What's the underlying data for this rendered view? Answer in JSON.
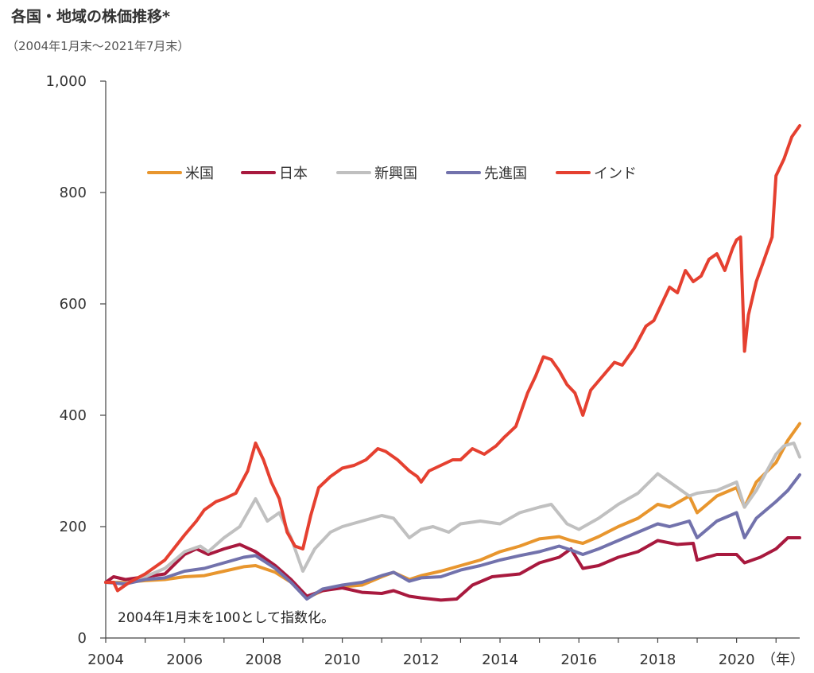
{
  "title": "各国・地域の株価推移*",
  "subtitle": "（2004年1月末～2021年7月末）",
  "chart_data": {
    "type": "line",
    "title": "各国・地域の株価推移*",
    "subtitle": "（2004年1月末～2021年7月末）",
    "xlabel": "（年）",
    "ylabel": "",
    "xlim": [
      2004.0,
      2021.6
    ],
    "ylim": [
      0,
      1000
    ],
    "x_ticks": [
      2004,
      2006,
      2008,
      2010,
      2012,
      2014,
      2016,
      2018,
      2020
    ],
    "x_tick_labels": [
      "2004",
      "2006",
      "2008",
      "2010",
      "2012",
      "2014",
      "2016",
      "2018",
      "2020"
    ],
    "y_ticks": [
      0,
      200,
      400,
      600,
      800,
      1000
    ],
    "y_tick_labels": [
      "0",
      "200",
      "400",
      "600",
      "800",
      "1,000"
    ],
    "grid": false,
    "legend_position": "top-left",
    "annotation": "2004年1月末を100として指数化。",
    "series": [
      {
        "name": "米国",
        "color": "#e8962e",
        "x": [
          2004.0,
          2004.5,
          2005.0,
          2005.5,
          2006.0,
          2006.5,
          2007.0,
          2007.5,
          2007.8,
          2008.3,
          2008.7,
          2009.1,
          2009.5,
          2010.0,
          2010.5,
          2011.0,
          2011.3,
          2011.7,
          2012.0,
          2012.5,
          2013.0,
          2013.5,
          2014.0,
          2014.5,
          2015.0,
          2015.5,
          2015.8,
          2016.1,
          2016.5,
          2017.0,
          2017.5,
          2018.0,
          2018.3,
          2018.8,
          2019.0,
          2019.5,
          2020.0,
          2020.2,
          2020.5,
          2021.0,
          2021.3,
          2021.6
        ],
        "y": [
          100,
          100,
          103,
          105,
          110,
          112,
          120,
          128,
          130,
          118,
          100,
          72,
          85,
          92,
          95,
          110,
          118,
          105,
          112,
          120,
          130,
          140,
          155,
          165,
          178,
          182,
          175,
          170,
          182,
          200,
          215,
          240,
          235,
          255,
          225,
          255,
          270,
          235,
          280,
          315,
          355,
          385
        ]
      },
      {
        "name": "日本",
        "color": "#a8193e",
        "x": [
          2004.0,
          2004.2,
          2004.5,
          2005.0,
          2005.5,
          2006.0,
          2006.3,
          2006.6,
          2007.0,
          2007.4,
          2007.8,
          2008.3,
          2008.7,
          2009.1,
          2009.5,
          2010.0,
          2010.5,
          2011.0,
          2011.3,
          2011.7,
          2012.0,
          2012.5,
          2012.9,
          2013.3,
          2013.8,
          2014.5,
          2015.0,
          2015.5,
          2015.8,
          2016.1,
          2016.5,
          2017.0,
          2017.5,
          2018.0,
          2018.5,
          2018.9,
          2019.0,
          2019.5,
          2020.0,
          2020.2,
          2020.6,
          2021.0,
          2021.3,
          2021.6
        ],
        "y": [
          100,
          110,
          105,
          110,
          115,
          150,
          160,
          150,
          160,
          168,
          155,
          130,
          105,
          75,
          85,
          90,
          82,
          80,
          85,
          75,
          72,
          68,
          70,
          95,
          110,
          115,
          135,
          145,
          160,
          125,
          130,
          145,
          155,
          175,
          168,
          170,
          140,
          150,
          150,
          135,
          145,
          160,
          180,
          180
        ]
      },
      {
        "name": "新興国",
        "color": "#c0c0c0",
        "x": [
          2004.0,
          2004.5,
          2005.0,
          2005.5,
          2006.0,
          2006.4,
          2006.6,
          2007.0,
          2007.4,
          2007.8,
          2008.1,
          2008.4,
          2008.7,
          2009.0,
          2009.3,
          2009.7,
          2010.0,
          2010.5,
          2011.0,
          2011.3,
          2011.7,
          2012.0,
          2012.3,
          2012.7,
          2013.0,
          2013.5,
          2014.0,
          2014.5,
          2015.0,
          2015.3,
          2015.7,
          2016.0,
          2016.5,
          2017.0,
          2017.5,
          2018.0,
          2018.3,
          2018.8,
          2019.0,
          2019.5,
          2020.0,
          2020.2,
          2020.5,
          2021.0,
          2021.2,
          2021.45,
          2021.6
        ],
        "y": [
          100,
          98,
          110,
          125,
          155,
          165,
          155,
          180,
          200,
          250,
          210,
          225,
          180,
          120,
          160,
          190,
          200,
          210,
          220,
          215,
          180,
          195,
          200,
          190,
          205,
          210,
          205,
          225,
          235,
          240,
          205,
          195,
          215,
          240,
          260,
          295,
          280,
          255,
          260,
          265,
          280,
          235,
          265,
          330,
          345,
          350,
          325
        ]
      },
      {
        "name": "先進国",
        "color": "#7272ac",
        "x": [
          2004.0,
          2004.5,
          2005.0,
          2005.5,
          2006.0,
          2006.5,
          2007.0,
          2007.5,
          2007.8,
          2008.3,
          2008.7,
          2009.1,
          2009.5,
          2010.0,
          2010.5,
          2011.0,
          2011.3,
          2011.7,
          2012.0,
          2012.5,
          2013.0,
          2013.5,
          2014.0,
          2014.5,
          2015.0,
          2015.5,
          2015.8,
          2016.1,
          2016.5,
          2017.0,
          2017.5,
          2018.0,
          2018.3,
          2018.8,
          2019.0,
          2019.5,
          2020.0,
          2020.2,
          2020.5,
          2021.0,
          2021.3,
          2021.6
        ],
        "y": [
          100,
          97,
          105,
          108,
          120,
          125,
          135,
          145,
          148,
          125,
          100,
          70,
          88,
          95,
          100,
          112,
          118,
          102,
          108,
          110,
          122,
          130,
          140,
          148,
          155,
          165,
          158,
          150,
          160,
          175,
          190,
          205,
          200,
          210,
          180,
          210,
          225,
          180,
          215,
          245,
          265,
          293
        ]
      },
      {
        "name": "インド",
        "color": "#e54030",
        "x": [
          2004.0,
          2004.2,
          2004.3,
          2004.6,
          2005.0,
          2005.5,
          2006.0,
          2006.3,
          2006.5,
          2006.8,
          2007.0,
          2007.3,
          2007.6,
          2007.8,
          2008.0,
          2008.2,
          2008.4,
          2008.6,
          2008.8,
          2009.0,
          2009.2,
          2009.4,
          2009.7,
          2010.0,
          2010.3,
          2010.6,
          2010.9,
          2011.1,
          2011.4,
          2011.7,
          2011.9,
          2012.0,
          2012.2,
          2012.5,
          2012.8,
          2013.0,
          2013.3,
          2013.6,
          2013.9,
          2014.1,
          2014.4,
          2014.7,
          2014.9,
          2015.1,
          2015.3,
          2015.5,
          2015.7,
          2015.9,
          2016.1,
          2016.3,
          2016.6,
          2016.9,
          2017.1,
          2017.4,
          2017.7,
          2017.9,
          2018.1,
          2018.3,
          2018.5,
          2018.7,
          2018.9,
          2019.1,
          2019.3,
          2019.5,
          2019.7,
          2019.9,
          2020.0,
          2020.1,
          2020.2,
          2020.3,
          2020.5,
          2020.7,
          2020.9,
          2021.0,
          2021.2,
          2021.4,
          2021.6
        ],
        "y": [
          100,
          100,
          85,
          100,
          115,
          140,
          185,
          210,
          230,
          245,
          250,
          260,
          300,
          350,
          320,
          280,
          250,
          190,
          165,
          160,
          220,
          270,
          290,
          305,
          310,
          320,
          340,
          335,
          320,
          300,
          290,
          280,
          300,
          310,
          320,
          320,
          340,
          330,
          345,
          360,
          380,
          440,
          470,
          505,
          500,
          480,
          455,
          440,
          400,
          445,
          470,
          495,
          490,
          520,
          560,
          570,
          600,
          630,
          620,
          660,
          640,
          650,
          680,
          690,
          660,
          700,
          715,
          720,
          515,
          580,
          640,
          680,
          720,
          830,
          860,
          900,
          920
        ]
      }
    ]
  }
}
